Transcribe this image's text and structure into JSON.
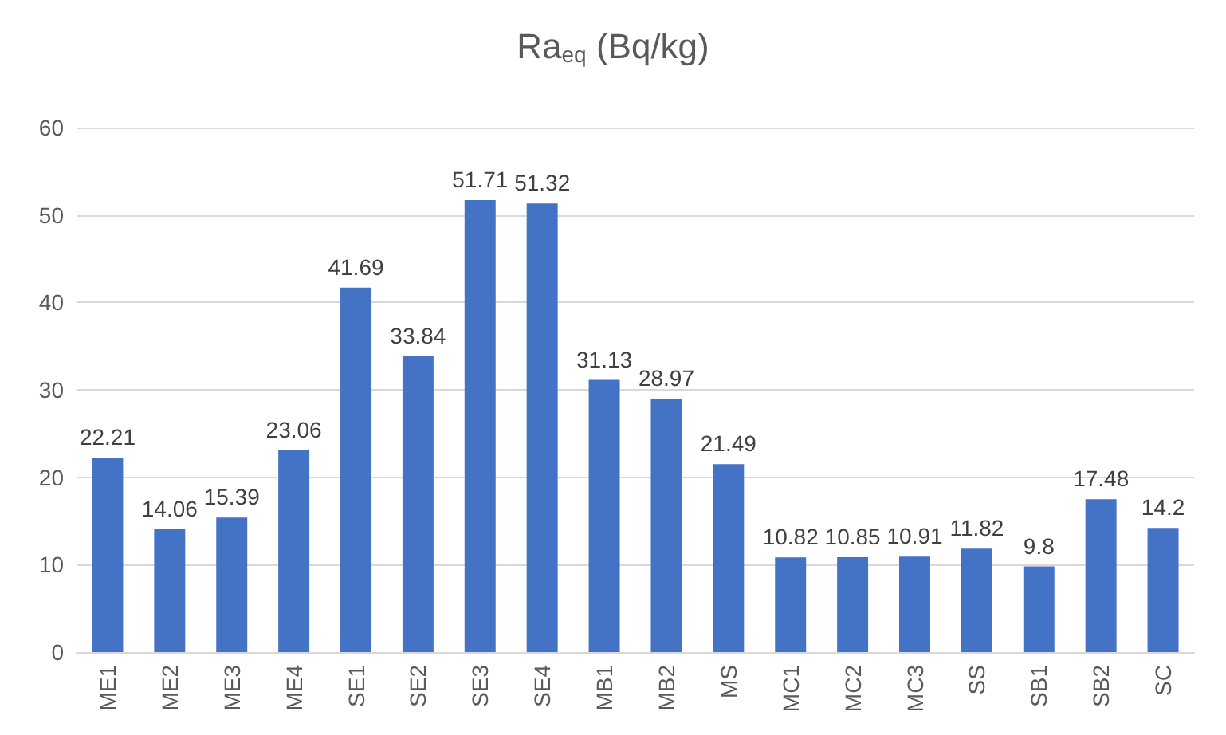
{
  "chart_data": {
    "type": "bar",
    "title": "Ra$_{eq}$ (Bq/kg)",
    "categories": [
      "ME1",
      "ME2",
      "ME3",
      "ME4",
      "SE1",
      "SE2",
      "SE3",
      "SE4",
      "MB1",
      "MB2",
      "MS",
      "MC1",
      "MC2",
      "MC3",
      "SS",
      "SB1",
      "SB2",
      "SC"
    ],
    "values": [
      22.21,
      14.06,
      15.39,
      23.06,
      41.69,
      33.84,
      51.71,
      51.32,
      31.13,
      28.97,
      21.49,
      10.82,
      10.85,
      10.91,
      11.82,
      9.8,
      17.48,
      14.2
    ],
    "color": "#4472c4",
    "ylim": [
      0,
      60
    ],
    "yticks": [
      0,
      10,
      20,
      30,
      40,
      50,
      60
    ],
    "grid": "y",
    "data_labels": true
  }
}
